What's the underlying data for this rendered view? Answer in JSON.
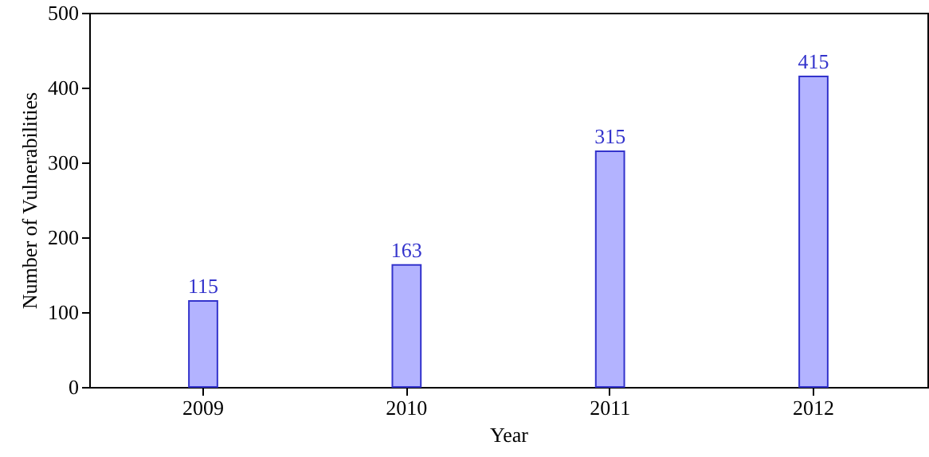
{
  "chart_data": {
    "type": "bar",
    "xlabel": "Year",
    "ylabel": "Number of Vulnerabilities",
    "categories": [
      "2009",
      "2010",
      "2011",
      "2012"
    ],
    "values": [
      115,
      163,
      315,
      415
    ],
    "color": "#b3b3ff",
    "ylim": [
      0,
      500
    ],
    "yticks": [
      0,
      100,
      200,
      300,
      400,
      500
    ],
    "data_labels": true,
    "grid": false
  }
}
